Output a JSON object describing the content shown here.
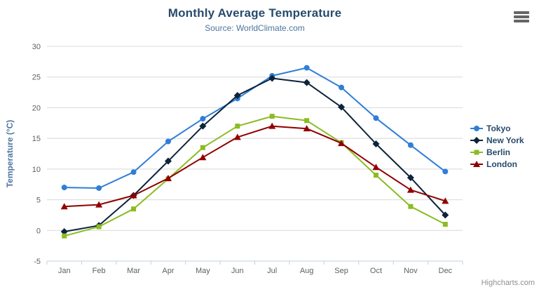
{
  "chart": {
    "credits_label": "Highcharts.com",
    "context_menu_icon": "hamburger-menu-icon"
  },
  "chart_data": {
    "type": "line",
    "title": "Monthly Average Temperature",
    "subtitle": "Source: WorldClimate.com",
    "categories": [
      "Jan",
      "Feb",
      "Mar",
      "Apr",
      "May",
      "Jun",
      "Jul",
      "Aug",
      "Sep",
      "Oct",
      "Nov",
      "Dec"
    ],
    "xlabel": "",
    "ylabel": "Temperature (°C)",
    "ylim": [
      -5,
      30
    ],
    "ytick_step": 5,
    "grid": true,
    "legend_position": "right",
    "series": [
      {
        "name": "Tokyo",
        "color": "#2f7ed8",
        "marker": "circle",
        "values": [
          7.0,
          6.9,
          9.5,
          14.5,
          18.2,
          21.5,
          25.2,
          26.5,
          23.3,
          18.3,
          13.9,
          9.6
        ]
      },
      {
        "name": "New York",
        "color": "#0d233a",
        "marker": "diamond",
        "values": [
          -0.2,
          0.8,
          5.7,
          11.3,
          17.0,
          22.0,
          24.8,
          24.1,
          20.1,
          14.1,
          8.6,
          2.5
        ]
      },
      {
        "name": "Berlin",
        "color": "#8bbc21",
        "marker": "square",
        "values": [
          -0.9,
          0.6,
          3.5,
          8.4,
          13.5,
          17.0,
          18.6,
          17.9,
          14.3,
          9.0,
          3.9,
          1.0
        ]
      },
      {
        "name": "London",
        "color": "#910000",
        "marker": "triangle",
        "values": [
          3.9,
          4.2,
          5.7,
          8.5,
          11.9,
          15.2,
          17.0,
          16.6,
          14.2,
          10.3,
          6.6,
          4.8
        ]
      }
    ],
    "colors": {
      "title": "#274b6d",
      "subtitle": "#4d759e",
      "axis_title": "#4d759e",
      "tick_label": "#606060",
      "grid_line": "#d8d8d8",
      "axis_line": "#c0d0e0",
      "legend_text": "#274b6d",
      "credits": "#909090",
      "menu_icon": "#666666"
    }
  }
}
